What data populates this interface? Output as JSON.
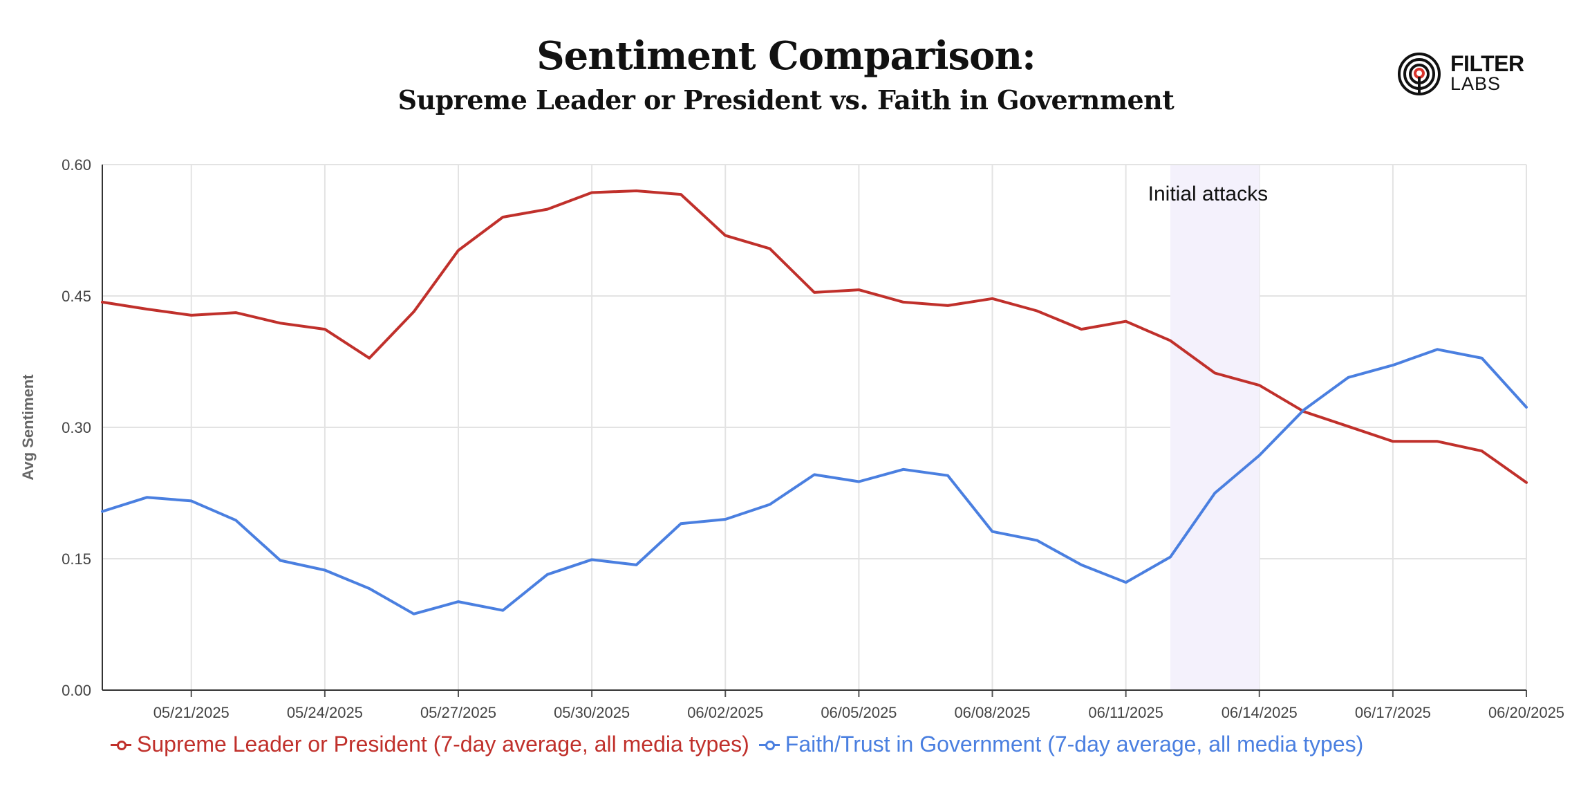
{
  "header": {
    "title": "Sentiment Comparison:",
    "subtitle": "Supreme Leader or President vs. Faith in Government"
  },
  "logo": {
    "line1": "FILTER",
    "line2": "LABS",
    "icon": "filter-labs-target-icon"
  },
  "colors": {
    "series_red": "#C0302B",
    "series_blue": "#4A7FE0",
    "shade": "#F4F1FC",
    "grid": "#E3E3E3"
  },
  "chart_data": {
    "type": "line",
    "title": "Sentiment Comparison:",
    "subtitle": "Supreme Leader or President vs. Faith in Government",
    "xlabel": "",
    "ylabel": "Avg Sentiment",
    "ylim": [
      0,
      0.6
    ],
    "y_ticks": [
      "0.00",
      "0.15",
      "0.30",
      "0.45",
      "0.60"
    ],
    "x_start": "05/19/2025",
    "x_end": "06/20/2025",
    "x_ticks": [
      "05/21/2025",
      "05/24/2025",
      "05/27/2025",
      "05/30/2025",
      "06/02/2025",
      "06/05/2025",
      "06/08/2025",
      "06/11/2025",
      "06/14/2025",
      "06/17/2025",
      "06/20/2025"
    ],
    "x": [
      "05/19/2025",
      "05/20/2025",
      "05/21/2025",
      "05/22/2025",
      "05/23/2025",
      "05/24/2025",
      "05/25/2025",
      "05/26/2025",
      "05/27/2025",
      "05/28/2025",
      "05/29/2025",
      "05/30/2025",
      "05/31/2025",
      "06/01/2025",
      "06/02/2025",
      "06/03/2025",
      "06/04/2025",
      "06/05/2025",
      "06/06/2025",
      "06/07/2025",
      "06/08/2025",
      "06/09/2025",
      "06/10/2025",
      "06/11/2025",
      "06/12/2025",
      "06/13/2025",
      "06/14/2025",
      "06/15/2025",
      "06/16/2025",
      "06/17/2025",
      "06/18/2025",
      "06/19/2025",
      "06/20/2025"
    ],
    "grid": true,
    "legend_position": "bottom-left",
    "series": [
      {
        "name": "Supreme Leader or President (7-day average, all media types)",
        "color": "#C0302B",
        "values": [
          0.443,
          0.435,
          0.428,
          0.431,
          0.419,
          0.412,
          0.379,
          0.432,
          0.502,
          0.54,
          0.549,
          0.568,
          0.57,
          0.566,
          0.519,
          0.504,
          0.454,
          0.457,
          0.443,
          0.439,
          0.447,
          0.433,
          0.412,
          0.421,
          0.399,
          0.362,
          0.348,
          0.318,
          0.301,
          0.284,
          0.284,
          0.273,
          0.237
        ]
      },
      {
        "name": "Faith/Trust in Government (7-day average, all media types)",
        "color": "#4A7FE0",
        "values": [
          0.204,
          0.22,
          0.216,
          0.194,
          0.148,
          0.137,
          0.116,
          0.087,
          0.101,
          0.091,
          0.132,
          0.149,
          0.143,
          0.19,
          0.195,
          0.212,
          0.246,
          0.238,
          0.252,
          0.245,
          0.181,
          0.171,
          0.143,
          0.123,
          0.152,
          0.225,
          0.268,
          0.32,
          0.357,
          0.371,
          0.389,
          0.379,
          0.323
        ]
      }
    ],
    "annotations": [
      {
        "label": "Initial attacks",
        "from": "06/12/2025",
        "to": "06/14/2025"
      }
    ]
  }
}
